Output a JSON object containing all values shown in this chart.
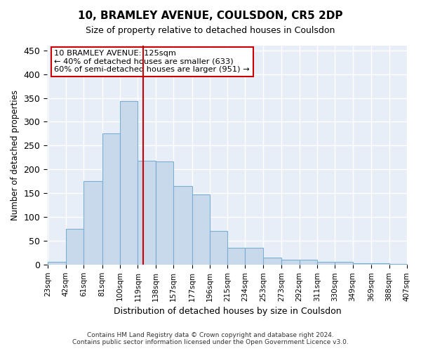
{
  "title": "10, BRAMLEY AVENUE, COULSDON, CR5 2DP",
  "subtitle": "Size of property relative to detached houses in Coulsdon",
  "xlabel": "Distribution of detached houses by size in Coulsdon",
  "ylabel": "Number of detached properties",
  "bar_color": "#c9d9ec",
  "bar_edge_color": "#7aafd4",
  "background_color": "#e8eef7",
  "grid_color": "#ffffff",
  "bin_edges": [
    23,
    42,
    61,
    81,
    100,
    119,
    138,
    157,
    177,
    196,
    215,
    234,
    253,
    273,
    292,
    311,
    330,
    349,
    369,
    388,
    407
  ],
  "bar_heights": [
    5,
    75,
    175,
    275,
    343,
    218,
    217,
    165,
    147,
    70,
    35,
    35,
    15,
    10,
    10,
    5,
    5,
    2,
    2,
    1
  ],
  "vline_x": 125,
  "vline_color": "#cc0000",
  "annotation_text": "10 BRAMLEY AVENUE: 125sqm\n← 40% of detached houses are smaller (633)\n60% of semi-detached houses are larger (951) →",
  "annotation_box_color": "#cc0000",
  "ylim": [
    0,
    460
  ],
  "yticks": [
    0,
    50,
    100,
    150,
    200,
    250,
    300,
    350,
    400,
    450
  ],
  "footer_line1": "Contains HM Land Registry data © Crown copyright and database right 2024.",
  "footer_line2": "Contains public sector information licensed under the Open Government Licence v3.0."
}
